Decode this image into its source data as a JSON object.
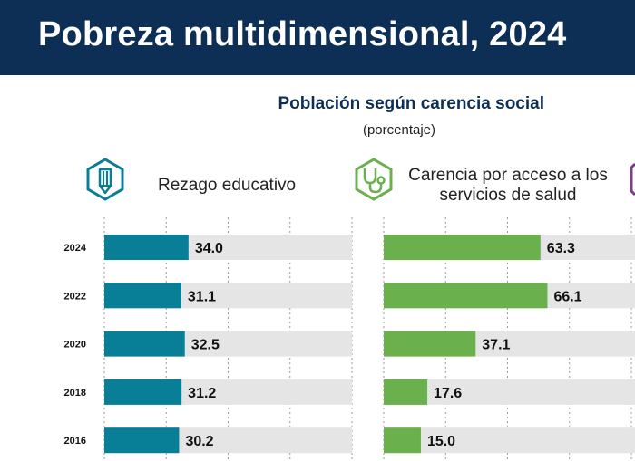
{
  "header": {
    "title": "Pobreza multidimensional, 2024"
  },
  "subtitle": "Población según carencia social",
  "unit": "(porcentaje)",
  "colors": {
    "header_bg": "#0e2f55",
    "educ": "#087f96",
    "salud": "#6ab04c",
    "track": "#e5e5e5",
    "third_icon": "#7b3f85"
  },
  "panels": [
    {
      "title": "Rezago educativo",
      "icon": "pencil-hexagon-icon"
    },
    {
      "title": "Carencia por acceso a los servicios de salud",
      "icon": "stethoscope-hexagon-icon"
    }
  ],
  "chart_data": {
    "type": "bar",
    "orientation": "horizontal",
    "categories": [
      "2024",
      "2022",
      "2020",
      "2018",
      "2016"
    ],
    "series": [
      {
        "name": "Rezago educativo",
        "values": [
          34.0,
          31.1,
          32.5,
          31.2,
          30.2
        ]
      },
      {
        "name": "Carencia por acceso a los servicios de salud",
        "values": [
          63.3,
          66.1,
          37.1,
          17.6,
          15.0
        ]
      }
    ],
    "xlim": [
      0,
      100
    ],
    "title": "Población según carencia social",
    "ylabel": "",
    "xlabel": ""
  }
}
